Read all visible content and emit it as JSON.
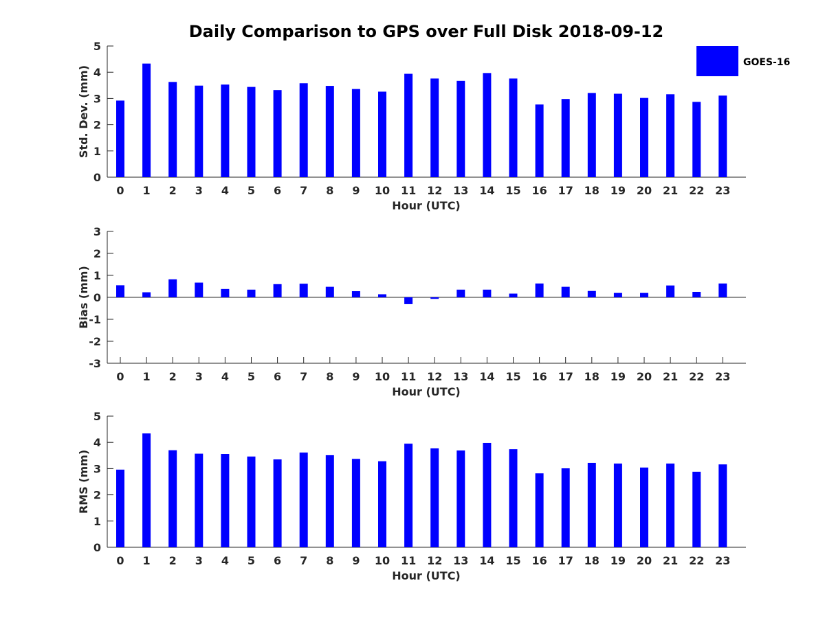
{
  "chart_data": {
    "title": "Daily Comparison to GPS over Full Disk 2018-09-12",
    "legend": {
      "label": "GOES-16",
      "color": "#0000ff",
      "placement": "top-right"
    },
    "panels": [
      {
        "type": "bar",
        "ylabel": "Std. Dev. (mm)",
        "xlabel": "Hour (UTC)",
        "ylim": [
          0,
          5
        ],
        "yticks": [
          0,
          1,
          2,
          3,
          4,
          5
        ],
        "x": [
          0,
          1,
          2,
          3,
          4,
          5,
          6,
          7,
          8,
          9,
          10,
          11,
          12,
          13,
          14,
          15,
          16,
          17,
          18,
          19,
          20,
          21,
          22,
          23
        ],
        "values": [
          2.92,
          4.33,
          3.63,
          3.49,
          3.53,
          3.44,
          3.32,
          3.58,
          3.48,
          3.36,
          3.26,
          3.94,
          3.76,
          3.67,
          3.97,
          3.76,
          2.77,
          2.98,
          3.21,
          3.18,
          3.02,
          3.16,
          2.87,
          3.11
        ]
      },
      {
        "type": "bar",
        "ylabel": "Bias (mm)",
        "xlabel": "Hour (UTC)",
        "ylim": [
          -3,
          3
        ],
        "yticks": [
          -3,
          -2,
          -1,
          0,
          1,
          2,
          3
        ],
        "x": [
          0,
          1,
          2,
          3,
          4,
          5,
          6,
          7,
          8,
          9,
          10,
          11,
          12,
          13,
          14,
          15,
          16,
          17,
          18,
          19,
          20,
          21,
          22,
          23
        ],
        "values": [
          0.55,
          0.23,
          0.82,
          0.67,
          0.38,
          0.35,
          0.6,
          0.62,
          0.48,
          0.28,
          0.14,
          -0.31,
          -0.07,
          0.35,
          0.35,
          0.17,
          0.63,
          0.48,
          0.29,
          0.2,
          0.2,
          0.54,
          0.25,
          0.63
        ]
      },
      {
        "type": "bar",
        "ylabel": "RMS (mm)",
        "xlabel": "Hour (UTC)",
        "ylim": [
          0,
          5
        ],
        "yticks": [
          0,
          1,
          2,
          3,
          4,
          5
        ],
        "x": [
          0,
          1,
          2,
          3,
          4,
          5,
          6,
          7,
          8,
          9,
          10,
          11,
          12,
          13,
          14,
          15,
          16,
          17,
          18,
          19,
          20,
          21,
          22,
          23
        ],
        "values": [
          2.96,
          4.34,
          3.7,
          3.57,
          3.56,
          3.46,
          3.35,
          3.61,
          3.51,
          3.37,
          3.28,
          3.95,
          3.77,
          3.69,
          3.98,
          3.74,
          2.82,
          3.01,
          3.22,
          3.19,
          3.04,
          3.19,
          2.88,
          3.16
        ]
      }
    ]
  }
}
